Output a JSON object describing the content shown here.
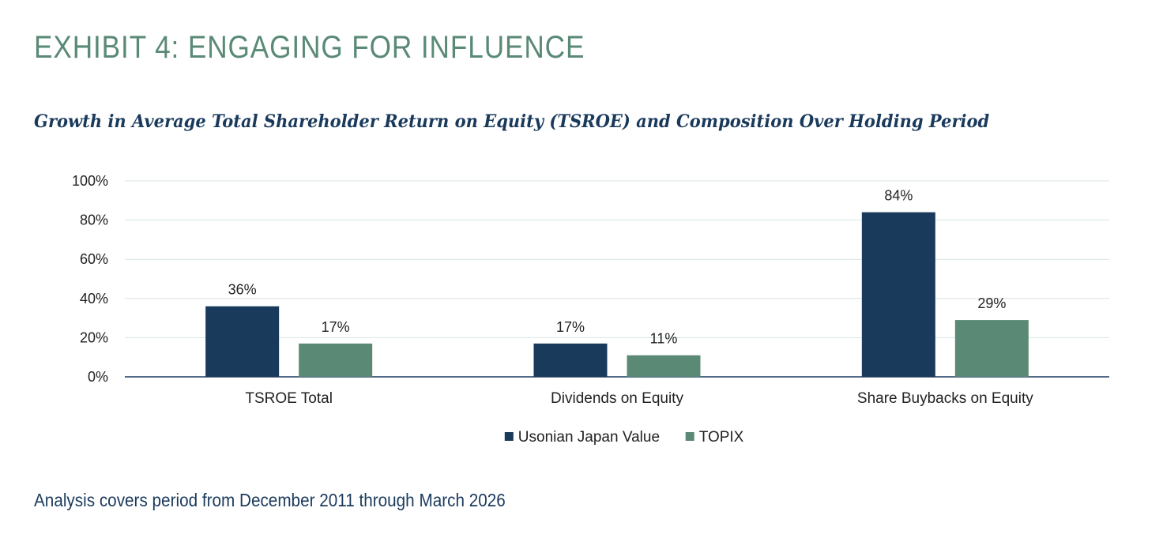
{
  "exhibit_title": "EXHIBIT 4: ENGAGING FOR INFLUENCE",
  "footnote": "Analysis covers period from December 2011 through March 2026",
  "colors": {
    "title": "#5a8a76",
    "subtitle": "#1a3a5c",
    "series_primary": "#1a3a5c",
    "series_secondary": "#5a8a76",
    "gridline": "#d9e4e6",
    "axis": "#1a3a5c"
  },
  "chart_data": {
    "type": "bar",
    "title": "Growth in Average Total Shareholder Return on Equity (TSROE) and Composition Over Holding Period",
    "categories": [
      "TSROE Total",
      "Dividends on Equity",
      "Share Buybacks on Equity"
    ],
    "series": [
      {
        "name": "Usonian Japan Value",
        "values": [
          36,
          17,
          84
        ],
        "labels": [
          "36%",
          "17%",
          "84%"
        ]
      },
      {
        "name": "TOPIX",
        "values": [
          17,
          11,
          29
        ],
        "labels": [
          "17%",
          "11%",
          "29%"
        ]
      }
    ],
    "yticks": [
      "0%",
      "20%",
      "40%",
      "60%",
      "80%",
      "100%"
    ],
    "ylim": [
      0,
      100
    ],
    "grid": true,
    "legend_position": "bottom"
  }
}
